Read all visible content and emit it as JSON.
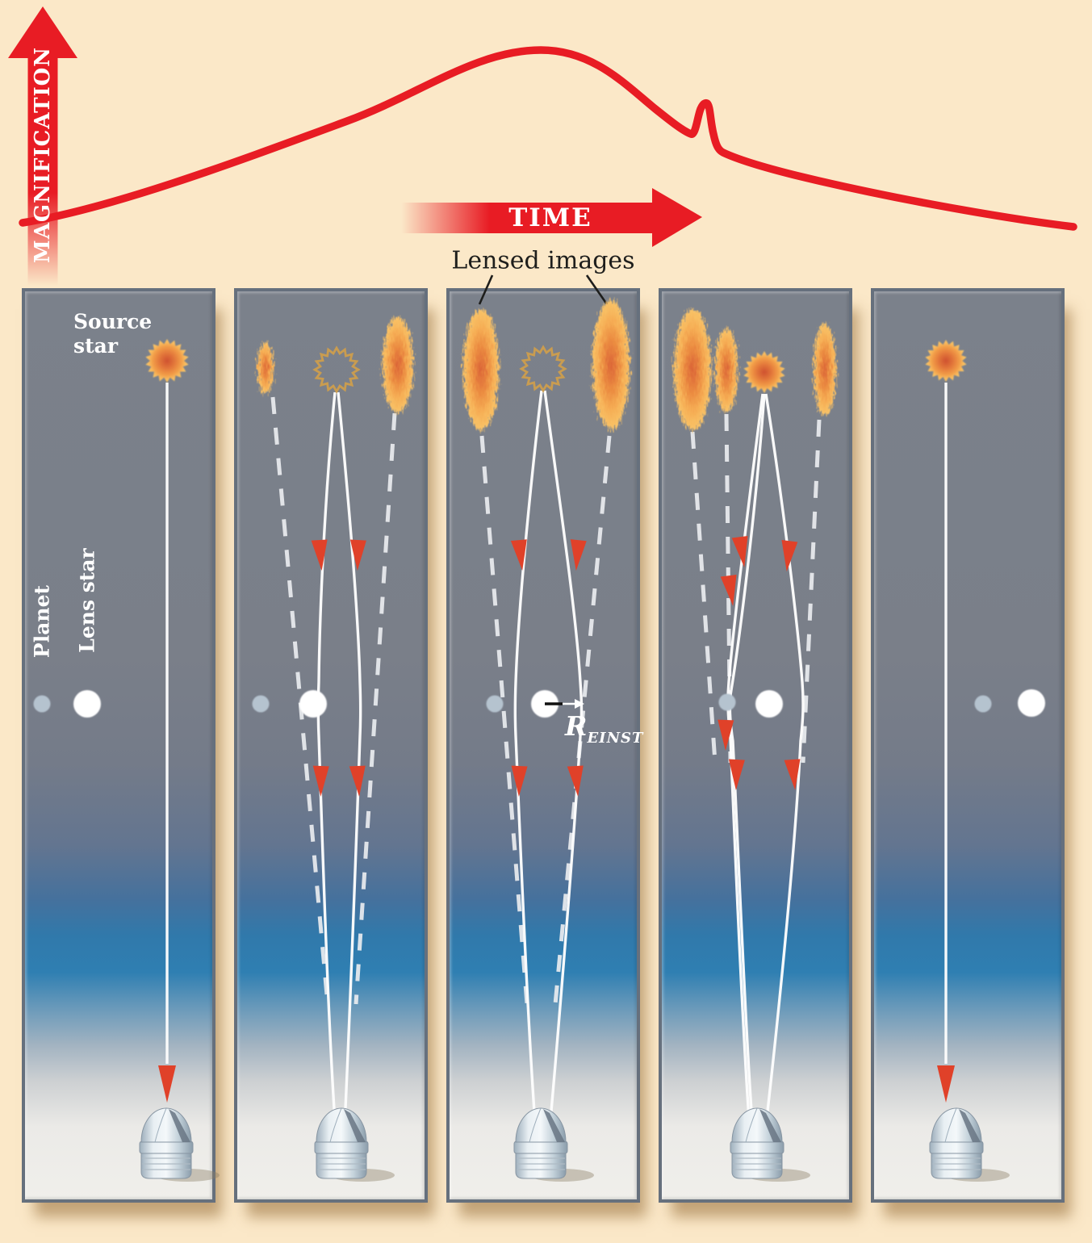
{
  "labels": {
    "magnification": "MAGNIFICATION",
    "time": "TIME",
    "lensed_images": "Lensed images",
    "source_star_line1": "Source",
    "source_star_line2": "star",
    "planet": "Planet",
    "lens_star": "Lens star",
    "einstein_radius_symbol": "R",
    "einstein_radius_subscript": "EINST"
  },
  "colors": {
    "background_cream": "#fbe8c8",
    "curve_red": "#e81c24",
    "arrow_red": "#e04129",
    "panel_gray": "#7a7f89",
    "panel_blue": "#2f7fb2",
    "panel_ground": "#f0efeb",
    "star_core_orange": "#cf5230",
    "star_edge_orange": "#f9c869",
    "ring_outline_gold": "#c99c50",
    "planet_dot": "#b5c3cf",
    "lens_star_dot": "#ffffff",
    "light_path_white": "#fdfdfd",
    "label_black": "#1e1e1c"
  },
  "icons": {
    "magnification-axis-arrow": "upward red arrow fading at base",
    "time-axis-arrow": "rightward red arrow fading at tail",
    "source-star-icon": "spiky orange sun",
    "source-star-outline-icon": "dashed spiky ring (true source position)",
    "lensed-image-blob": "elongated orange flame-like smear",
    "planet-dot": "small gray-blue circle",
    "lens-star-dot": "white circle",
    "light-direction-arrow-icon": "small red cone on light path",
    "telescope-dome-icon": "silver observatory dome"
  },
  "panels": [
    {
      "stage": 1,
      "lensed_images_count": 0,
      "source_visible": true,
      "source_outline": false,
      "shows_labels": [
        "Source star",
        "Planet",
        "Lens star"
      ]
    },
    {
      "stage": 2,
      "lensed_images_count": 2,
      "source_visible": false,
      "source_outline": true,
      "shows_labels": []
    },
    {
      "stage": 3,
      "lensed_images_count": 2,
      "source_visible": false,
      "source_outline": true,
      "shows_labels": [
        "R EINST"
      ]
    },
    {
      "stage": 4,
      "lensed_images_count": 3,
      "source_visible": true,
      "source_outline": false,
      "shows_labels": []
    },
    {
      "stage": 5,
      "lensed_images_count": 0,
      "source_visible": true,
      "source_outline": false,
      "shows_labels": []
    }
  ],
  "chart_data": {
    "type": "line",
    "title": "",
    "xlabel": "TIME",
    "ylabel": "MAGNIFICATION",
    "x_units": "relative (0-1, arrow axis, no ticks)",
    "y_units": "relative magnification (0-1, arrow axis, no ticks)",
    "grid": false,
    "legend": false,
    "series": [
      {
        "name": "microlensing light curve",
        "color": "#e81c24",
        "points": [
          [
            0.0,
            0.1
          ],
          [
            0.09,
            0.14
          ],
          [
            0.17,
            0.21
          ],
          [
            0.25,
            0.32
          ],
          [
            0.31,
            0.44
          ],
          [
            0.37,
            0.61
          ],
          [
            0.42,
            0.8
          ],
          [
            0.46,
            0.94
          ],
          [
            0.49,
            0.99
          ],
          [
            0.53,
            0.95
          ],
          [
            0.57,
            0.84
          ],
          [
            0.6,
            0.73
          ],
          [
            0.62,
            0.64
          ],
          [
            0.635,
            0.56
          ],
          [
            0.645,
            0.72
          ],
          [
            0.652,
            0.6
          ],
          [
            0.66,
            0.5
          ],
          [
            0.68,
            0.46
          ],
          [
            0.72,
            0.42
          ],
          [
            0.78,
            0.35
          ],
          [
            0.85,
            0.27
          ],
          [
            0.92,
            0.19
          ],
          [
            1.0,
            0.08
          ]
        ]
      }
    ],
    "annotations": [
      {
        "label": "planetary perturbation spike",
        "x": 0.645,
        "y": 0.72
      }
    ]
  }
}
